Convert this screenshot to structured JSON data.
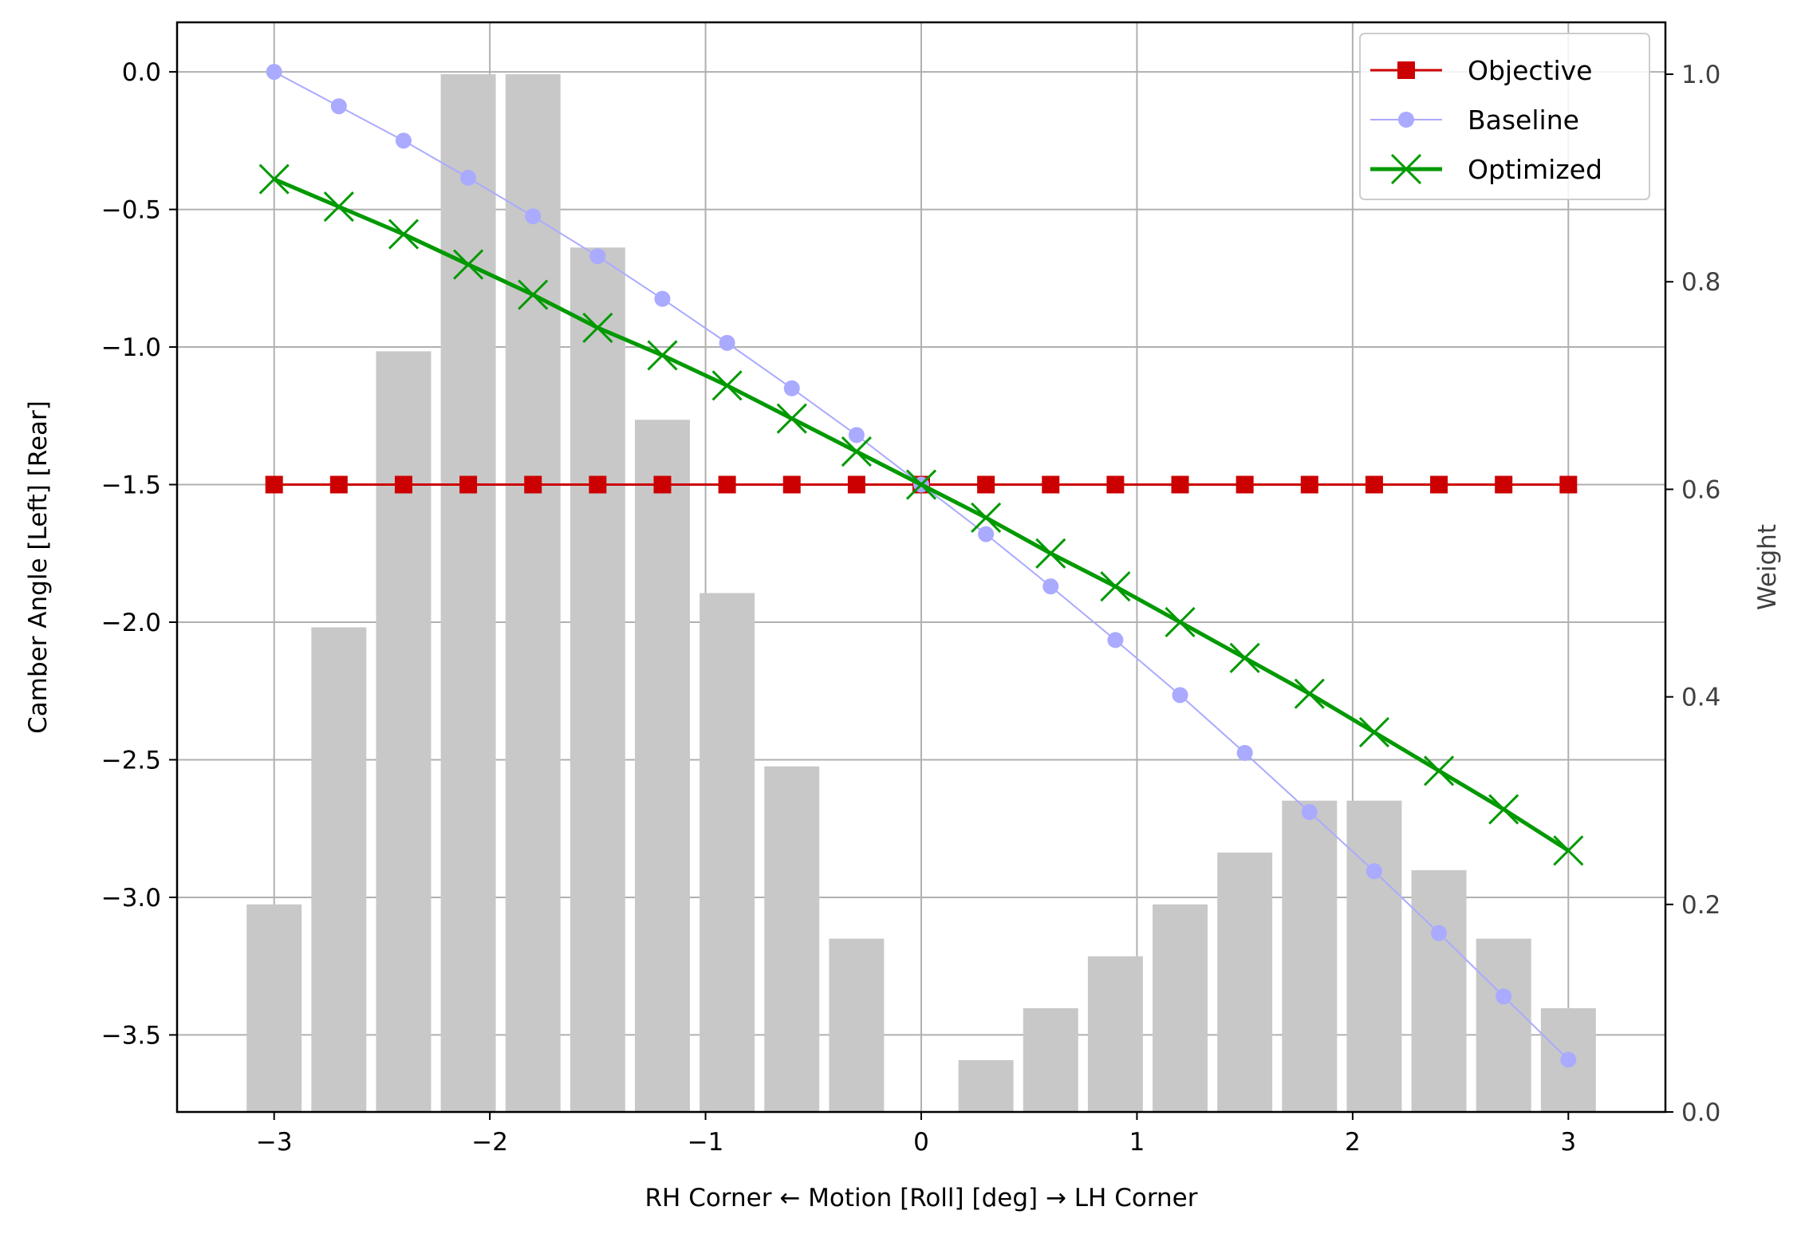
{
  "chart_data": {
    "type": "line",
    "title": "",
    "xlabel": "RH Corner ← Motion [Roll] [deg] → LH Corner",
    "ylabel": "Camber Angle [Left] [Rear]",
    "y2label": "Weight",
    "xlim": [
      -3.45,
      3.45
    ],
    "ylim": [
      -3.78,
      0.18
    ],
    "y2lim": [
      0.0,
      1.05
    ],
    "xticks": [
      -3,
      -2,
      -1,
      0,
      1,
      2,
      3
    ],
    "xtick_labels": [
      "−3",
      "−2",
      "−1",
      "0",
      "1",
      "2",
      "3"
    ],
    "yticks": [
      0.0,
      -0.5,
      -1.0,
      -1.5,
      -2.0,
      -2.5,
      -3.0,
      -3.5
    ],
    "ytick_labels": [
      "0.0",
      "−0.5",
      "−1.0",
      "−1.5",
      "−2.0",
      "−2.5",
      "−3.0",
      "−3.5"
    ],
    "y2ticks": [
      0.0,
      0.2,
      0.4,
      0.6,
      0.8,
      1.0
    ],
    "y2tick_labels": [
      "0.0",
      "0.2",
      "0.4",
      "0.6",
      "0.8",
      "1.0"
    ],
    "grid": true,
    "legend_position": "top-right",
    "x": [
      -3.0,
      -2.7,
      -2.4,
      -2.1,
      -1.8,
      -1.5,
      -1.2,
      -0.9,
      -0.6,
      -0.3,
      0.0,
      0.3,
      0.6,
      0.9,
      1.2,
      1.5,
      1.8,
      2.1,
      2.4,
      2.7,
      3.0
    ],
    "bars": {
      "axis": "right",
      "color": "#c8c8c8",
      "values": [
        0.2,
        0.467,
        0.733,
        1.0,
        1.0,
        0.833,
        0.667,
        0.5,
        0.333,
        0.167,
        0.0,
        0.05,
        0.1,
        0.15,
        0.2,
        0.25,
        0.3,
        0.3,
        0.233,
        0.167,
        0.1
      ]
    },
    "series": [
      {
        "name": "Objective",
        "color": "#cc0000",
        "marker": "square",
        "values": [
          -1.5,
          -1.5,
          -1.5,
          -1.5,
          -1.5,
          -1.5,
          -1.5,
          -1.5,
          -1.5,
          -1.5,
          -1.5,
          -1.5,
          -1.5,
          -1.5,
          -1.5,
          -1.5,
          -1.5,
          -1.5,
          -1.5,
          -1.5,
          -1.5
        ]
      },
      {
        "name": "Baseline",
        "color": "#aaaaff",
        "marker": "circle",
        "values": [
          0.0,
          -0.125,
          -0.25,
          -0.385,
          -0.525,
          -0.67,
          -0.825,
          -0.985,
          -1.15,
          -1.32,
          -1.5,
          -1.68,
          -1.87,
          -2.065,
          -2.265,
          -2.475,
          -2.69,
          -2.905,
          -3.13,
          -3.36,
          -3.59
        ]
      },
      {
        "name": "Optimized",
        "color": "#009900",
        "marker": "x",
        "values": [
          -0.39,
          -0.49,
          -0.59,
          -0.7,
          -0.81,
          -0.93,
          -1.03,
          -1.14,
          -1.26,
          -1.38,
          -1.5,
          -1.62,
          -1.75,
          -1.87,
          -2.0,
          -2.13,
          -2.26,
          -2.4,
          -2.54,
          -2.68,
          -2.83
        ]
      }
    ]
  }
}
